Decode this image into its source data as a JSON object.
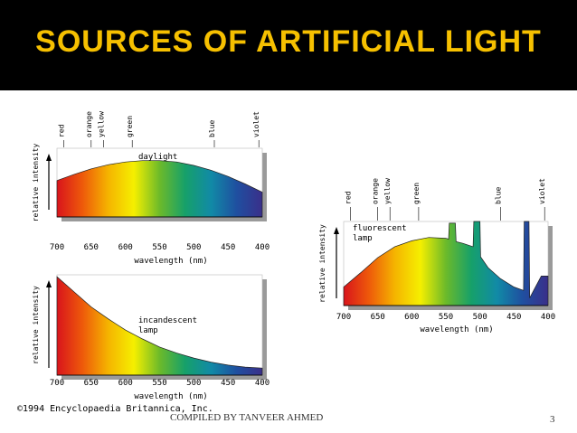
{
  "slide": {
    "title": "SOURCES OF ARTIFICIAL LIGHT",
    "footer": "COMPILED BY TANVEER AHMED",
    "page_number": "3",
    "copyright": "©1994 Encyclopaedia Britannica, Inc.",
    "title_color": "#f6c000",
    "title_bar_color": "#000000"
  },
  "colors": {
    "spectrum": [
      "#d8141c",
      "#ee5a0a",
      "#f5b400",
      "#f5ef00",
      "#6cba2a",
      "#16a06a",
      "#118aa6",
      "#1f4fa0",
      "#3a2f8a"
    ],
    "panel_shadow": "#9a9a9a"
  },
  "chart_data": [
    {
      "type": "area",
      "curve_label": "daylight",
      "xlabel": "wavelength (nm)",
      "ylabel": "relative intensity",
      "x_ticks": [
        "700",
        "650",
        "600",
        "550",
        "500",
        "450",
        "400"
      ],
      "color_labels": [
        "red",
        "orange",
        "yellow",
        "green",
        "blue",
        "violet"
      ],
      "xlim": [
        700,
        400
      ],
      "ylim": [
        0,
        1
      ],
      "x": [
        700,
        675,
        650,
        625,
        600,
        575,
        550,
        525,
        500,
        475,
        450,
        425,
        400
      ],
      "y": [
        0.53,
        0.62,
        0.7,
        0.76,
        0.8,
        0.82,
        0.82,
        0.8,
        0.75,
        0.68,
        0.59,
        0.48,
        0.36
      ]
    },
    {
      "type": "area",
      "curve_label": "incandescent\nlamp",
      "xlabel": "wavelength (nm)",
      "ylabel": "relative intensity",
      "x_ticks": [
        "700",
        "650",
        "600",
        "550",
        "500",
        "450",
        "400"
      ],
      "xlim": [
        700,
        400
      ],
      "ylim": [
        0,
        1
      ],
      "x": [
        700,
        675,
        650,
        625,
        600,
        575,
        550,
        525,
        500,
        475,
        450,
        425,
        400
      ],
      "y": [
        0.98,
        0.83,
        0.68,
        0.56,
        0.45,
        0.36,
        0.28,
        0.22,
        0.17,
        0.13,
        0.1,
        0.08,
        0.07
      ]
    },
    {
      "type": "area",
      "curve_label": "fluorescent\nlamp",
      "xlabel": "wavelength (nm)",
      "ylabel": "relative intensity",
      "x_ticks": [
        "700",
        "650",
        "600",
        "550",
        "500",
        "450",
        "400"
      ],
      "color_labels": [
        "red",
        "orange",
        "yellow",
        "green",
        "blue",
        "violet"
      ],
      "xlim": [
        700,
        400
      ],
      "ylim": [
        0,
        1
      ],
      "x": [
        700,
        675,
        650,
        625,
        600,
        575,
        550,
        546,
        545,
        536,
        535,
        525,
        510,
        509,
        500,
        499,
        488,
        470,
        450,
        436,
        435,
        428,
        427,
        410,
        409,
        400
      ],
      "y": [
        0.22,
        0.39,
        0.57,
        0.7,
        0.77,
        0.81,
        0.8,
        0.79,
        0.98,
        0.98,
        0.76,
        0.74,
        0.7,
        1.0,
        1.0,
        0.58,
        0.45,
        0.32,
        0.22,
        0.18,
        1.0,
        1.0,
        0.09,
        0.35,
        0.35,
        0.35
      ]
    }
  ]
}
